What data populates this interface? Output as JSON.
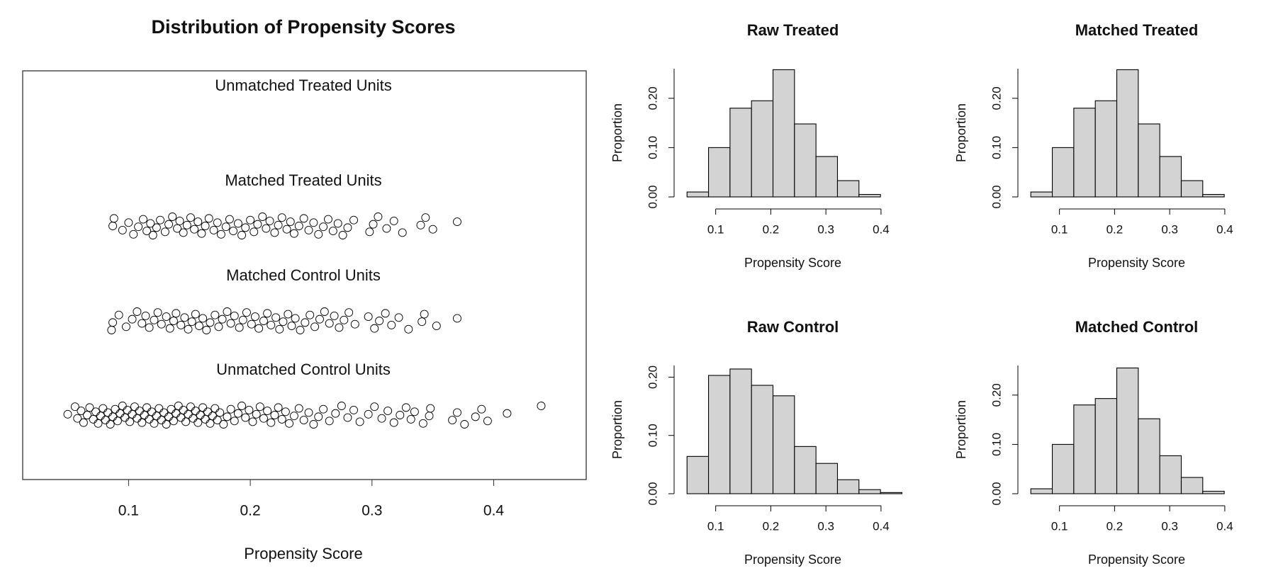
{
  "chart_data": [
    {
      "type": "strip",
      "title": "Distribution of Propensity Scores",
      "xlabel": "Propensity Score",
      "xlim": [
        0.013,
        0.476
      ],
      "xticks": [
        0.1,
        0.2,
        0.3,
        0.4
      ],
      "series": [
        {
          "name": "Unmatched Treated Units",
          "values": []
        },
        {
          "name": "Matched Treated Units",
          "values": [
            0.087,
            0.088,
            0.095,
            0.1,
            0.104,
            0.108,
            0.112,
            0.115,
            0.118,
            0.12,
            0.123,
            0.126,
            0.13,
            0.133,
            0.136,
            0.14,
            0.142,
            0.145,
            0.148,
            0.151,
            0.154,
            0.157,
            0.16,
            0.163,
            0.166,
            0.17,
            0.173,
            0.176,
            0.18,
            0.183,
            0.186,
            0.19,
            0.193,
            0.196,
            0.2,
            0.203,
            0.206,
            0.21,
            0.213,
            0.216,
            0.22,
            0.223,
            0.226,
            0.23,
            0.233,
            0.236,
            0.24,
            0.244,
            0.248,
            0.252,
            0.256,
            0.26,
            0.264,
            0.268,
            0.272,
            0.276,
            0.28,
            0.285,
            0.298,
            0.301,
            0.305,
            0.312,
            0.318,
            0.325,
            0.34,
            0.344,
            0.35,
            0.37
          ]
        },
        {
          "name": "Matched Control Units",
          "values": [
            0.086,
            0.087,
            0.092,
            0.098,
            0.103,
            0.107,
            0.111,
            0.114,
            0.117,
            0.121,
            0.124,
            0.127,
            0.131,
            0.134,
            0.137,
            0.139,
            0.143,
            0.146,
            0.149,
            0.152,
            0.155,
            0.158,
            0.161,
            0.164,
            0.167,
            0.171,
            0.174,
            0.177,
            0.181,
            0.184,
            0.187,
            0.191,
            0.194,
            0.197,
            0.201,
            0.204,
            0.207,
            0.211,
            0.214,
            0.217,
            0.221,
            0.224,
            0.227,
            0.231,
            0.234,
            0.237,
            0.241,
            0.245,
            0.249,
            0.253,
            0.257,
            0.261,
            0.265,
            0.269,
            0.273,
            0.277,
            0.281,
            0.286,
            0.297,
            0.302,
            0.306,
            0.311,
            0.316,
            0.322,
            0.33,
            0.341,
            0.343,
            0.353,
            0.37
          ]
        },
        {
          "name": "Unmatched Control Units",
          "values": [
            0.05,
            0.056,
            0.058,
            0.061,
            0.063,
            0.066,
            0.068,
            0.071,
            0.073,
            0.075,
            0.077,
            0.079,
            0.081,
            0.083,
            0.085,
            0.087,
            0.089,
            0.091,
            0.093,
            0.095,
            0.097,
            0.099,
            0.101,
            0.103,
            0.105,
            0.107,
            0.109,
            0.111,
            0.113,
            0.115,
            0.117,
            0.119,
            0.121,
            0.123,
            0.125,
            0.127,
            0.129,
            0.131,
            0.133,
            0.135,
            0.137,
            0.139,
            0.141,
            0.143,
            0.145,
            0.147,
            0.149,
            0.151,
            0.153,
            0.155,
            0.157,
            0.159,
            0.161,
            0.163,
            0.165,
            0.167,
            0.169,
            0.171,
            0.173,
            0.175,
            0.178,
            0.181,
            0.184,
            0.187,
            0.19,
            0.193,
            0.196,
            0.199,
            0.202,
            0.205,
            0.208,
            0.211,
            0.214,
            0.217,
            0.22,
            0.223,
            0.226,
            0.229,
            0.232,
            0.236,
            0.24,
            0.244,
            0.248,
            0.252,
            0.256,
            0.26,
            0.265,
            0.27,
            0.275,
            0.28,
            0.285,
            0.29,
            0.297,
            0.302,
            0.308,
            0.313,
            0.318,
            0.323,
            0.328,
            0.332,
            0.335,
            0.342,
            0.347,
            0.348,
            0.366,
            0.37,
            0.376,
            0.385,
            0.39,
            0.395,
            0.411,
            0.439
          ]
        }
      ]
    },
    {
      "type": "histogram",
      "title": "Raw Treated",
      "xlabel": "Propensity Score",
      "ylabel": "Proportion",
      "bins": [
        0.048,
        0.087,
        0.126,
        0.165,
        0.204,
        0.243,
        0.282,
        0.321,
        0.36,
        0.399,
        0.438
      ],
      "values": [
        0.01,
        0.1,
        0.18,
        0.195,
        0.258,
        0.148,
        0.082,
        0.033,
        0.005,
        0
      ],
      "xlim": [
        0.04,
        0.44
      ],
      "xticks": [
        0.1,
        0.2,
        0.3,
        0.4
      ],
      "ylim": [
        0,
        0.26
      ],
      "yticks": [
        {
          "value": 0,
          "label": "0.00"
        },
        {
          "value": 0.1,
          "label": "0.10"
        },
        {
          "value": 0.2,
          "label": "0.20"
        }
      ]
    },
    {
      "type": "histogram",
      "title": "Matched Treated",
      "xlabel": "Propensity Score",
      "ylabel": "Proportion",
      "bins": [
        0.048,
        0.087,
        0.126,
        0.165,
        0.204,
        0.243,
        0.282,
        0.321,
        0.36,
        0.399,
        0.438
      ],
      "values": [
        0.01,
        0.1,
        0.18,
        0.195,
        0.258,
        0.148,
        0.082,
        0.033,
        0.005,
        0
      ],
      "xlim": [
        0.04,
        0.44
      ],
      "xticks": [
        0.1,
        0.2,
        0.3,
        0.4
      ],
      "ylim": [
        0,
        0.26
      ],
      "yticks": [
        {
          "value": 0,
          "label": "0.00"
        },
        {
          "value": 0.1,
          "label": "0.10"
        },
        {
          "value": 0.2,
          "label": "0.20"
        }
      ]
    },
    {
      "type": "histogram",
      "title": "Raw Control",
      "xlabel": "Propensity Score",
      "ylabel": "Proportion",
      "bins": [
        0.048,
        0.087,
        0.126,
        0.165,
        0.204,
        0.243,
        0.282,
        0.321,
        0.36,
        0.399,
        0.438
      ],
      "values": [
        0.064,
        0.203,
        0.214,
        0.186,
        0.168,
        0.081,
        0.052,
        0.024,
        0.007,
        0.002
      ],
      "xlim": [
        0.04,
        0.44
      ],
      "xticks": [
        0.1,
        0.2,
        0.3,
        0.4
      ],
      "ylim": [
        0,
        0.22
      ],
      "yticks": [
        {
          "value": 0,
          "label": "0.00"
        },
        {
          "value": 0.1,
          "label": "0.10"
        },
        {
          "value": 0.2,
          "label": "0.20"
        }
      ]
    },
    {
      "type": "histogram",
      "title": "Matched Control",
      "xlabel": "Propensity Score",
      "ylabel": "Proportion",
      "bins": [
        0.048,
        0.087,
        0.126,
        0.165,
        0.204,
        0.243,
        0.282,
        0.321,
        0.36,
        0.399,
        0.438
      ],
      "values": [
        0.01,
        0.1,
        0.18,
        0.193,
        0.255,
        0.152,
        0.077,
        0.033,
        0.005,
        0
      ],
      "xlim": [
        0.04,
        0.44
      ],
      "xticks": [
        0.1,
        0.2,
        0.3,
        0.4
      ],
      "ylim": [
        0,
        0.26
      ],
      "yticks": [
        {
          "value": 0,
          "label": "0.00"
        },
        {
          "value": 0.1,
          "label": "0.10"
        },
        {
          "value": 0.2,
          "label": "0.20"
        }
      ]
    }
  ]
}
